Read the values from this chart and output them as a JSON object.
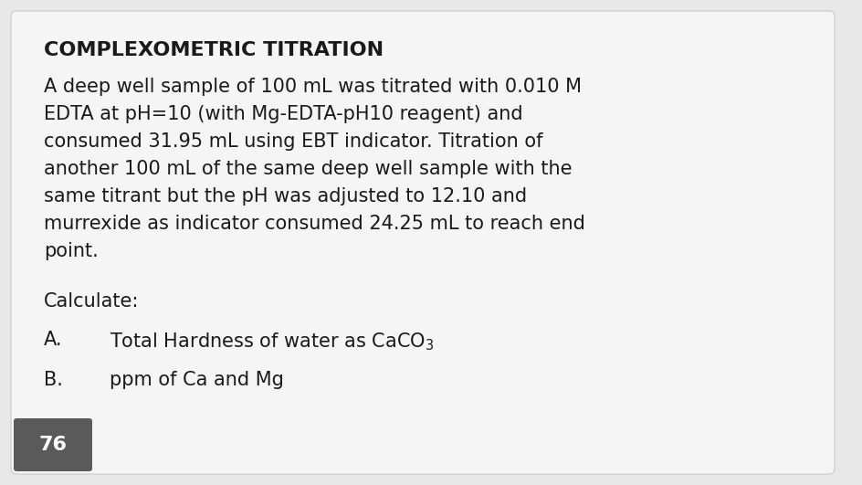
{
  "title": "COMPLEXOMETRIC TITRATION",
  "body_lines": [
    "A deep well sample of 100 mL was titrated with 0.010 M",
    "EDTA at pH=10 (with Mg-EDTA-pH10 reagent) and",
    "consumed 31.95 mL using EBT indicator. Titration of",
    "another 100 mL of the same deep well sample with the",
    "same titrant but the pH was adjusted to 12.10 and",
    "murrexide as indicator consumed 24.25 mL to reach end",
    "point."
  ],
  "calculate_label": "Calculate:",
  "item_a_label": "A.",
  "item_a_text": "Total Hardness of water as CaCO$_3$",
  "item_b_label": "B.",
  "item_b_text": "ppm of Ca and Mg",
  "page_number": "76",
  "bg_color": "#e8e8e8",
  "card_color": "#f5f5f5",
  "page_badge_color": "#5a5a5a",
  "page_badge_text_color": "#ffffff",
  "text_color": "#1a1a1a",
  "title_fontsize": 16,
  "body_fontsize": 15,
  "page_fontsize": 16
}
